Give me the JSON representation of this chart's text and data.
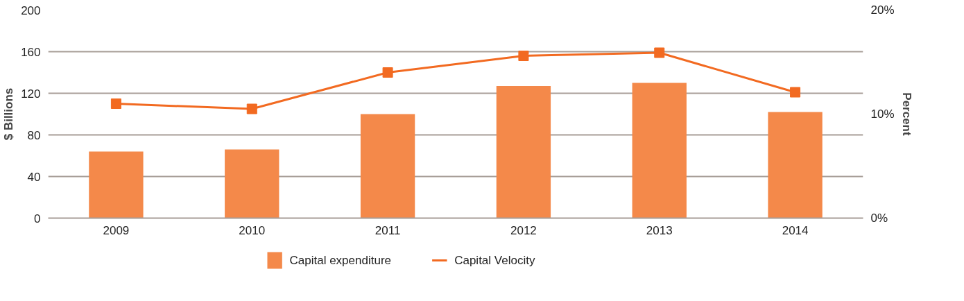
{
  "chart_data": {
    "type": "bar",
    "categories": [
      "2009",
      "2010",
      "2011",
      "2012",
      "2013",
      "2014"
    ],
    "ylabel": "$ Billions",
    "y2label": "Percent",
    "ylim": [
      0,
      200
    ],
    "yticks": [
      0,
      40,
      80,
      120,
      160,
      200
    ],
    "y2lim": [
      0,
      20
    ],
    "y2ticks": [
      {
        "value": 0,
        "label": "0%"
      },
      {
        "value": 10,
        "label": "10%"
      },
      {
        "value": 20,
        "label": "20%"
      }
    ],
    "grid": "y",
    "legend": "bottom",
    "series": [
      {
        "name": "Capital expenditure",
        "color": "#f4894a",
        "values": [
          64,
          66,
          100,
          127,
          130,
          102
        ]
      },
      {
        "name": "Capital Velocity",
        "type": "line",
        "axis": "y2",
        "color": "#f26a21",
        "marker": "square",
        "values": [
          11.0,
          10.5,
          14.0,
          15.6,
          15.9,
          12.1
        ]
      }
    ]
  }
}
